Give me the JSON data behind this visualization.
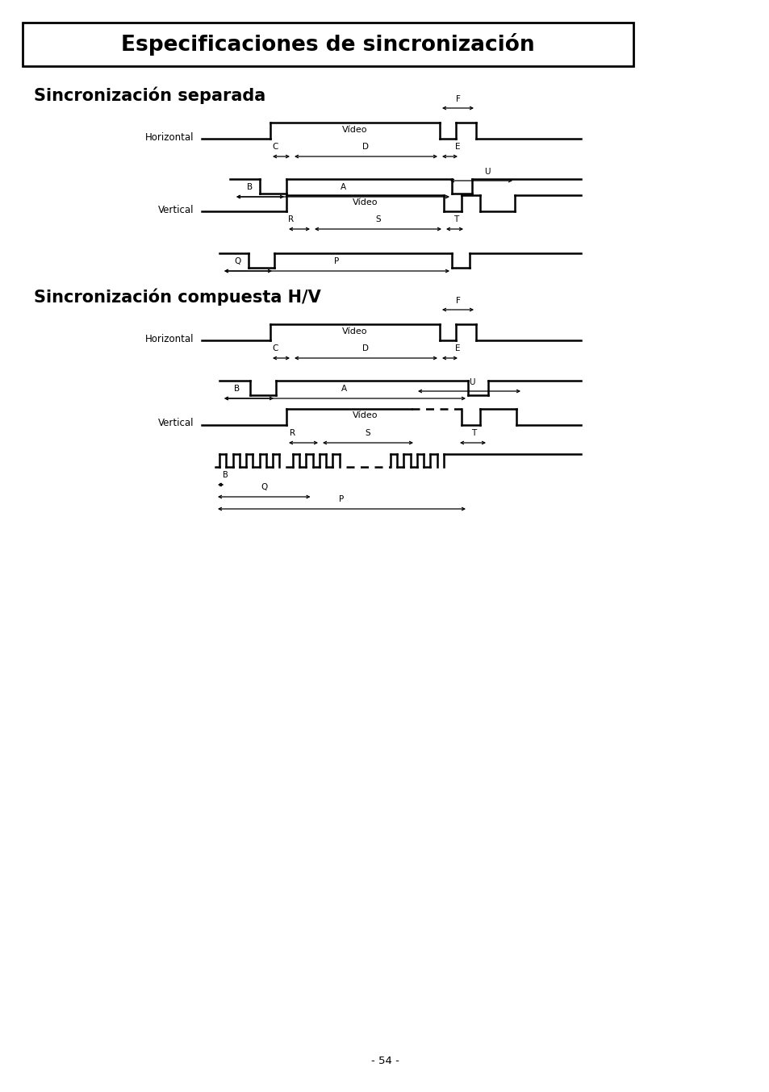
{
  "title": "Especificaciones de sincronización",
  "section1": "Sincronización separada",
  "section2": "Sincronización compuesta H/V",
  "page_number": "- 54 -",
  "bg_color": "#ffffff",
  "line_color": "#000000"
}
